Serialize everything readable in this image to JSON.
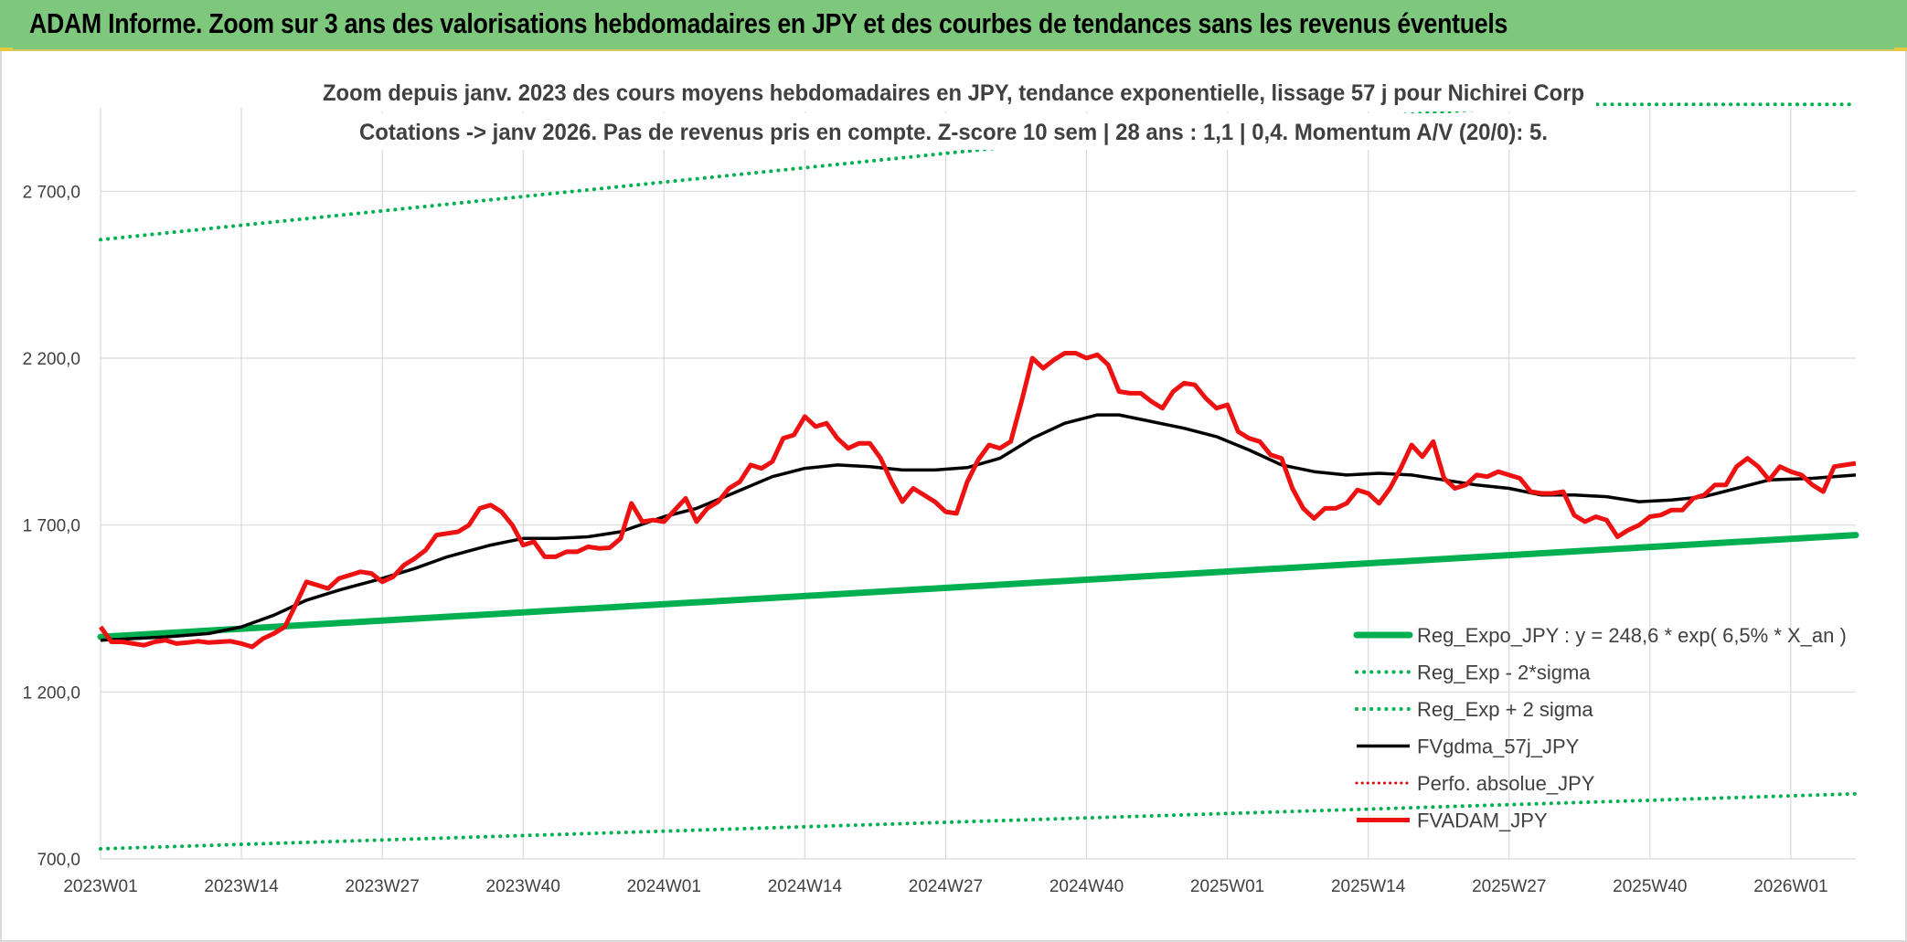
{
  "banner": {
    "title": "ADAM Informe. Zoom sur 3 ans des valorisations hebdomadaires en JPY et des courbes de tendances sans les revenus éventuels"
  },
  "colors": {
    "banner_bg": "#7ec87e",
    "reg_expo": "#00b050",
    "dotted_band": "#00b050",
    "fvgdma": "#000000",
    "perfo": "#e00000",
    "fvadam": "#ee1111",
    "grid": "#d9d9d9",
    "text": "#404040"
  },
  "chart_data": {
    "type": "line",
    "title_line1": "Zoom depuis janv. 2023 des cours moyens hebdomadaires en JPY, tendance exponentielle, lissage 57 j pour Nichirei Corp",
    "title_line2": "Cotations -> janv 2026. Pas de revenus pris en compte. Z-score 10 sem | 28 ans : 1,1 | 0,4. Momentum A/V (20/0): 5.",
    "xlabel": "",
    "ylabel": "",
    "ylim": [
      700,
      2950
    ],
    "yticks": [
      {
        "v": 700,
        "label": "700,0"
      },
      {
        "v": 1200,
        "label": "1 200,0"
      },
      {
        "v": 1700,
        "label": "1 700,0"
      },
      {
        "v": 2200,
        "label": "2 200,0"
      },
      {
        "v": 2700,
        "label": "2 700,0"
      }
    ],
    "week_range": [
      0,
      162
    ],
    "xticks": [
      {
        "w": 0,
        "label": "2023W01"
      },
      {
        "w": 13,
        "label": "2023W14"
      },
      {
        "w": 26,
        "label": "2023W27"
      },
      {
        "w": 39,
        "label": "2023W40"
      },
      {
        "w": 52,
        "label": "2024W01"
      },
      {
        "w": 65,
        "label": "2024W14"
      },
      {
        "w": 78,
        "label": "2024W27"
      },
      {
        "w": 91,
        "label": "2024W40"
      },
      {
        "w": 104,
        "label": "2025W01"
      },
      {
        "w": 117,
        "label": "2025W14"
      },
      {
        "w": 130,
        "label": "2025W27"
      },
      {
        "w": 143,
        "label": "2025W40"
      },
      {
        "w": 156,
        "label": "2026W01"
      }
    ],
    "series": [
      {
        "name": "Reg_Expo_JPY : y = 248,6 * exp( 6,5% *  X_an )",
        "style": "thick",
        "points": [
          [
            0,
            1365
          ],
          [
            162,
            1670
          ]
        ]
      },
      {
        "name": "Reg_Exp - 2*sigma",
        "style": "dotted",
        "points": [
          [
            0,
            730
          ],
          [
            162,
            895
          ]
        ]
      },
      {
        "name": "Reg_Exp + 2 sigma",
        "style": "dotted",
        "points": [
          [
            0,
            2555
          ],
          [
            98,
            2880
          ],
          [
            134,
            2960
          ],
          [
            162,
            2960
          ]
        ]
      },
      {
        "name": "FVgdma_57j_JPY",
        "style": "solid",
        "points": [
          [
            0,
            1355
          ],
          [
            6,
            1365
          ],
          [
            10,
            1375
          ],
          [
            13,
            1395
          ],
          [
            16,
            1430
          ],
          [
            19,
            1475
          ],
          [
            22,
            1505
          ],
          [
            26,
            1540
          ],
          [
            29,
            1570
          ],
          [
            32,
            1605
          ],
          [
            36,
            1640
          ],
          [
            39,
            1660
          ],
          [
            42,
            1660
          ],
          [
            45,
            1665
          ],
          [
            48,
            1680
          ],
          [
            52,
            1725
          ],
          [
            55,
            1750
          ],
          [
            58,
            1790
          ],
          [
            62,
            1845
          ],
          [
            65,
            1870
          ],
          [
            68,
            1880
          ],
          [
            71,
            1875
          ],
          [
            74,
            1865
          ],
          [
            77,
            1865
          ],
          [
            80,
            1872
          ],
          [
            83,
            1900
          ],
          [
            86,
            1960
          ],
          [
            89,
            2005
          ],
          [
            92,
            2030
          ],
          [
            94,
            2030
          ],
          [
            97,
            2010
          ],
          [
            100,
            1990
          ],
          [
            103,
            1965
          ],
          [
            106,
            1925
          ],
          [
            109,
            1880
          ],
          [
            112,
            1860
          ],
          [
            115,
            1850
          ],
          [
            118,
            1855
          ],
          [
            121,
            1850
          ],
          [
            124,
            1835
          ],
          [
            127,
            1820
          ],
          [
            130,
            1810
          ],
          [
            133,
            1790
          ],
          [
            136,
            1790
          ],
          [
            139,
            1785
          ],
          [
            142,
            1770
          ],
          [
            145,
            1775
          ],
          [
            148,
            1785
          ],
          [
            151,
            1810
          ],
          [
            154,
            1835
          ],
          [
            158,
            1840
          ],
          [
            162,
            1850
          ]
        ]
      },
      {
        "name": "Perfo. absolue_JPY",
        "style": "dotted_red",
        "points": []
      },
      {
        "name": "FVADAM_JPY",
        "style": "solid_red",
        "points": [
          [
            0,
            1395
          ],
          [
            1,
            1350
          ],
          [
            2,
            1350
          ],
          [
            3,
            1345
          ],
          [
            4,
            1340
          ],
          [
            5,
            1350
          ],
          [
            6,
            1355
          ],
          [
            7,
            1345
          ],
          [
            8,
            1348
          ],
          [
            9,
            1352
          ],
          [
            10,
            1348
          ],
          [
            11,
            1350
          ],
          [
            12,
            1352
          ],
          [
            13,
            1345
          ],
          [
            14,
            1335
          ],
          [
            15,
            1360
          ],
          [
            16,
            1375
          ],
          [
            17,
            1395
          ],
          [
            18,
            1460
          ],
          [
            19,
            1530
          ],
          [
            20,
            1520
          ],
          [
            21,
            1510
          ],
          [
            22,
            1540
          ],
          [
            23,
            1550
          ],
          [
            24,
            1560
          ],
          [
            25,
            1555
          ],
          [
            26,
            1530
          ],
          [
            27,
            1545
          ],
          [
            28,
            1580
          ],
          [
            29,
            1600
          ],
          [
            30,
            1625
          ],
          [
            31,
            1670
          ],
          [
            32,
            1675
          ],
          [
            33,
            1680
          ],
          [
            34,
            1700
          ],
          [
            35,
            1750
          ],
          [
            36,
            1760
          ],
          [
            37,
            1740
          ],
          [
            38,
            1700
          ],
          [
            39,
            1640
          ],
          [
            40,
            1650
          ],
          [
            41,
            1605
          ],
          [
            42,
            1605
          ],
          [
            43,
            1620
          ],
          [
            44,
            1620
          ],
          [
            45,
            1635
          ],
          [
            46,
            1630
          ],
          [
            47,
            1632
          ],
          [
            48,
            1660
          ],
          [
            49,
            1765
          ],
          [
            50,
            1710
          ],
          [
            51,
            1715
          ],
          [
            52,
            1710
          ],
          [
            53,
            1745
          ],
          [
            54,
            1780
          ],
          [
            55,
            1710
          ],
          [
            56,
            1750
          ],
          [
            57,
            1770
          ],
          [
            58,
            1810
          ],
          [
            59,
            1830
          ],
          [
            60,
            1880
          ],
          [
            61,
            1870
          ],
          [
            62,
            1890
          ],
          [
            63,
            1960
          ],
          [
            64,
            1970
          ],
          [
            65,
            2025
          ],
          [
            66,
            1995
          ],
          [
            67,
            2005
          ],
          [
            68,
            1960
          ],
          [
            69,
            1930
          ],
          [
            70,
            1945
          ],
          [
            71,
            1945
          ],
          [
            72,
            1900
          ],
          [
            73,
            1830
          ],
          [
            74,
            1770
          ],
          [
            75,
            1810
          ],
          [
            76,
            1790
          ],
          [
            77,
            1770
          ],
          [
            78,
            1740
          ],
          [
            79,
            1735
          ],
          [
            80,
            1830
          ],
          [
            81,
            1895
          ],
          [
            82,
            1940
          ],
          [
            83,
            1930
          ],
          [
            84,
            1950
          ],
          [
            85,
            2070
          ],
          [
            86,
            2200
          ],
          [
            87,
            2170
          ],
          [
            88,
            2195
          ],
          [
            89,
            2215
          ],
          [
            90,
            2215
          ],
          [
            91,
            2200
          ],
          [
            92,
            2210
          ],
          [
            93,
            2180
          ],
          [
            94,
            2100
          ],
          [
            95,
            2095
          ],
          [
            96,
            2095
          ],
          [
            97,
            2070
          ],
          [
            98,
            2050
          ],
          [
            99,
            2100
          ],
          [
            100,
            2125
          ],
          [
            101,
            2120
          ],
          [
            102,
            2080
          ],
          [
            103,
            2050
          ],
          [
            104,
            2060
          ],
          [
            105,
            1980
          ],
          [
            106,
            1960
          ],
          [
            107,
            1950
          ],
          [
            108,
            1910
          ],
          [
            109,
            1900
          ],
          [
            110,
            1810
          ],
          [
            111,
            1750
          ],
          [
            112,
            1720
          ],
          [
            113,
            1750
          ],
          [
            114,
            1750
          ],
          [
            115,
            1765
          ],
          [
            116,
            1805
          ],
          [
            117,
            1795
          ],
          [
            118,
            1765
          ],
          [
            119,
            1810
          ],
          [
            120,
            1870
          ],
          [
            121,
            1940
          ],
          [
            122,
            1905
          ],
          [
            123,
            1950
          ],
          [
            124,
            1840
          ],
          [
            125,
            1810
          ],
          [
            126,
            1820
          ],
          [
            127,
            1850
          ],
          [
            128,
            1845
          ],
          [
            129,
            1860
          ],
          [
            130,
            1850
          ],
          [
            131,
            1840
          ],
          [
            132,
            1800
          ],
          [
            133,
            1795
          ],
          [
            134,
            1795
          ],
          [
            135,
            1800
          ],
          [
            136,
            1730
          ],
          [
            137,
            1710
          ],
          [
            138,
            1725
          ],
          [
            139,
            1715
          ],
          [
            140,
            1665
          ],
          [
            141,
            1685
          ],
          [
            142,
            1700
          ],
          [
            143,
            1725
          ],
          [
            144,
            1730
          ],
          [
            145,
            1745
          ],
          [
            146,
            1745
          ],
          [
            147,
            1780
          ],
          [
            148,
            1790
          ],
          [
            149,
            1820
          ],
          [
            150,
            1820
          ],
          [
            151,
            1875
          ],
          [
            152,
            1900
          ],
          [
            153,
            1875
          ],
          [
            154,
            1835
          ],
          [
            155,
            1875
          ],
          [
            156,
            1860
          ],
          [
            157,
            1850
          ],
          [
            158,
            1820
          ],
          [
            159,
            1800
          ],
          [
            160,
            1875
          ],
          [
            161,
            1880
          ],
          [
            162,
            1885
          ]
        ]
      }
    ],
    "legend_placement": "bottom-right"
  }
}
